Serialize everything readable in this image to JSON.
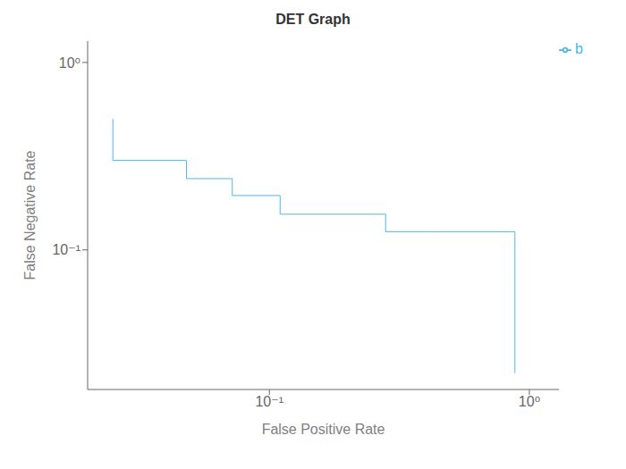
{
  "chart_data": {
    "type": "line",
    "title": "DET Graph",
    "xlabel": "False Positive Rate",
    "ylabel": "False Negative Rate",
    "x": [
      0.025,
      0.025,
      0.048,
      0.048,
      0.072,
      0.072,
      0.11,
      0.11,
      0.28,
      0.28,
      0.42,
      0.42,
      0.88,
      0.88,
      0.88
    ],
    "series": [
      {
        "name": "b",
        "color": "#4db8e8",
        "values": [
          0.5,
          0.3,
          0.3,
          0.24,
          0.24,
          0.195,
          0.195,
          0.155,
          0.155,
          0.125,
          0.125,
          0.125,
          0.125,
          0.075,
          0.022
        ]
      }
    ],
    "xlim": [
      0.02,
      1.3
    ],
    "ylim": [
      0.018,
      1.3
    ],
    "xticks": [
      {
        "value": 0.1,
        "label": "10⁻¹"
      },
      {
        "value": 1,
        "label": "10⁰"
      }
    ],
    "yticks": [
      {
        "value": 0.1,
        "label": "10⁻¹"
      },
      {
        "value": 1,
        "label": "10⁰"
      }
    ],
    "log": true,
    "grid": false,
    "legend": "upper right"
  }
}
